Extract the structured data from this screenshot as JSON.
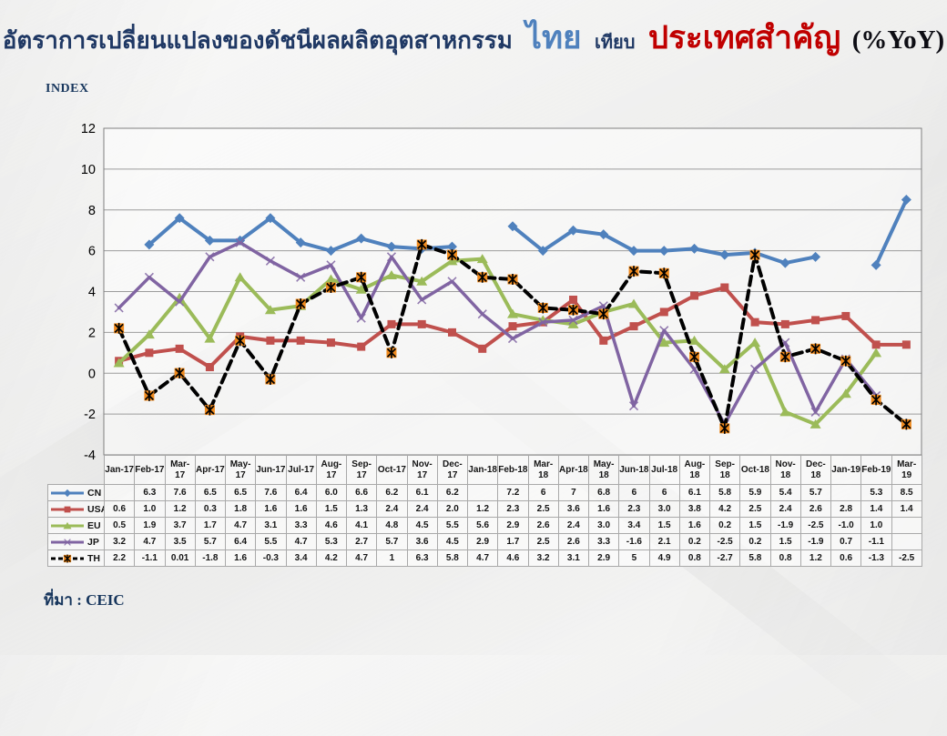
{
  "header": {
    "title_parts": [
      {
        "text": "อัตราการเปลี่ยนแปลงของดัชนีผลผลิตอุตสาหกรรม"
      },
      {
        "text": "ไทย"
      },
      {
        "text": "เทียบ"
      },
      {
        "text": "ประเทศสำคัญ"
      },
      {
        "text": "(%YoY)"
      }
    ],
    "colors": {
      "navy": "#1F3864",
      "thai_blue": "#4F81BD",
      "red": "#C00000",
      "yoy_dark": "#0d0d14"
    }
  },
  "axis": {
    "y_title": "INDEX"
  },
  "source": {
    "label": "ที่มา : CEIC"
  },
  "chart_data": {
    "type": "line",
    "title": "อัตราการเปลี่ยนแปลงของดัชนีผลผลิตอุตสาหกรรม ไทย เทียบ ประเทศสำคัญ (%YoY)",
    "xlabel": "",
    "ylabel": "INDEX",
    "ylim": [
      -4,
      12
    ],
    "yticks": [
      12,
      10,
      8,
      6,
      4,
      2,
      0,
      -2,
      -4
    ],
    "grid": true,
    "legend_position": "table-left",
    "categories": [
      "Jan-17",
      "Feb-17",
      "Mar-17",
      "Apr-17",
      "May-17",
      "Jun-17",
      "Jul-17",
      "Aug-17",
      "Sep-17",
      "Oct-17",
      "Nov-17",
      "Dec-17",
      "Jan-18",
      "Feb-18",
      "Mar-18",
      "Apr-18",
      "May-18",
      "Jun-18",
      "Jul-18",
      "Aug-18",
      "Sep-18",
      "Oct-18",
      "Nov-18",
      "Dec-18",
      "Jan-19",
      "Feb-19",
      "Mar-19"
    ],
    "x_labels_display": [
      "Jan-17",
      "Feb-17",
      "Mar-\n17",
      "Apr-17",
      "May-\n17",
      "Jun-17",
      "Jul-17",
      "Aug-\n17",
      "Sep-17",
      "Oct-17",
      "Nov-\n17",
      "Dec-\n17",
      "Jan-18",
      "Feb-18",
      "Mar-\n18",
      "Apr-18",
      "May-\n18",
      "Jun-18",
      "Jul-18",
      "Aug-\n18",
      "Sep-18",
      "Oct-18",
      "Nov-\n18",
      "Dec-\n18",
      "Jan-19",
      "Feb-19",
      "Mar-\n19"
    ],
    "series": [
      {
        "name": "CN",
        "color": "#4F81BD",
        "marker": "diamond",
        "dash": null,
        "values": [
          "",
          "6.3",
          "7.6",
          "6.5",
          "6.5",
          "7.6",
          "6.4",
          "6.0",
          "6.6",
          "6.2",
          "6.1",
          "6.2",
          "",
          "7.2",
          "6",
          "7",
          "6.8",
          "6",
          "6",
          "6.1",
          "5.8",
          "5.9",
          "5.4",
          "5.7",
          "",
          "5.3",
          "8.5"
        ]
      },
      {
        "name": "USA",
        "color": "#C0504D",
        "marker": "square",
        "dash": null,
        "values": [
          "0.6",
          "1.0",
          "1.2",
          "0.3",
          "1.8",
          "1.6",
          "1.6",
          "1.5",
          "1.3",
          "2.4",
          "2.4",
          "2.0",
          "1.2",
          "2.3",
          "2.5",
          "3.6",
          "1.6",
          "2.3",
          "3.0",
          "3.8",
          "4.2",
          "2.5",
          "2.4",
          "2.6",
          "2.8",
          "1.4",
          "1.4"
        ]
      },
      {
        "name": "EU",
        "color": "#9BBB59",
        "marker": "triangle",
        "dash": null,
        "values": [
          "0.5",
          "1.9",
          "3.7",
          "1.7",
          "4.7",
          "3.1",
          "3.3",
          "4.6",
          "4.1",
          "4.8",
          "4.5",
          "5.5",
          "5.6",
          "2.9",
          "2.6",
          "2.4",
          "3.0",
          "3.4",
          "1.5",
          "1.6",
          "0.2",
          "1.5",
          "-1.9",
          "-2.5",
          "-1.0",
          "1.0",
          ""
        ]
      },
      {
        "name": "JP",
        "color": "#8064A2",
        "marker": "x",
        "dash": null,
        "values": [
          "3.2",
          "4.7",
          "3.5",
          "5.7",
          "6.4",
          "5.5",
          "4.7",
          "5.3",
          "2.7",
          "5.7",
          "3.6",
          "4.5",
          "2.9",
          "1.7",
          "2.5",
          "2.6",
          "3.3",
          "-1.6",
          "2.1",
          "0.2",
          "-2.5",
          "0.2",
          "1.5",
          "-1.9",
          "0.7",
          "-1.1",
          ""
        ]
      },
      {
        "name": "TH",
        "color": "#000000",
        "marker": "star",
        "marker_color": "#F08A1D",
        "dash": "10 6",
        "values": [
          "2.2",
          "-1.1",
          "0.01",
          "-1.8",
          "1.6",
          "-0.3",
          "3.4",
          "4.2",
          "4.7",
          "1",
          "6.3",
          "5.8",
          "4.7",
          "4.6",
          "3.2",
          "3.1",
          "2.9",
          "5",
          "4.9",
          "0.8",
          "-2.7",
          "5.8",
          "0.8",
          "1.2",
          "0.6",
          "-1.3",
          "-2.5"
        ]
      }
    ]
  }
}
